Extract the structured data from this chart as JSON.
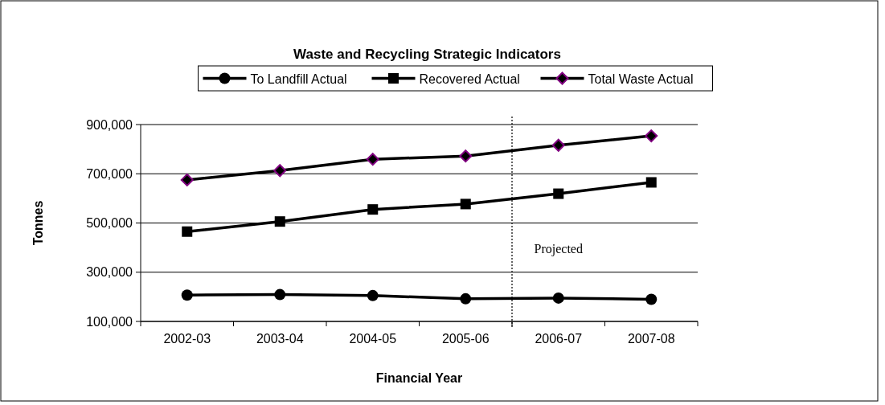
{
  "chart_data": {
    "type": "line",
    "title": "Waste and Recycling Strategic Indicators",
    "xlabel": "Financial Year",
    "ylabel": "Tonnes",
    "categories": [
      "2002-03",
      "2003-04",
      "2004-05",
      "2005-06",
      "2006-07",
      "2007-08"
    ],
    "series": [
      {
        "name": "To Landfill Actual",
        "color": "#000000",
        "marker": "circle",
        "values": [
          207000,
          209000,
          205000,
          192000,
          195000,
          190000
        ]
      },
      {
        "name": "Recovered Actual",
        "color": "#000000",
        "marker": "square",
        "values": [
          465000,
          506000,
          555000,
          577000,
          619000,
          665000
        ]
      },
      {
        "name": "Total Waste Actual",
        "color": "#000000",
        "marker": "diamond",
        "values": [
          675000,
          713000,
          759000,
          772000,
          816000,
          854000
        ]
      }
    ],
    "ylim": [
      100000,
      900000
    ],
    "yticks": [
      {
        "value": 100000,
        "label": "100,000"
      },
      {
        "value": 300000,
        "label": "300,000"
      },
      {
        "value": 500000,
        "label": "500,000"
      },
      {
        "value": 700000,
        "label": "700,000"
      },
      {
        "value": 900000,
        "label": "900,000"
      }
    ],
    "grid": "y",
    "legend": "top",
    "annotations": [
      "Projected"
    ],
    "ref_lines": [
      {
        "axis": "x",
        "value": "2006-07",
        "line_style": "dotted",
        "color": "#000000"
      }
    ]
  }
}
